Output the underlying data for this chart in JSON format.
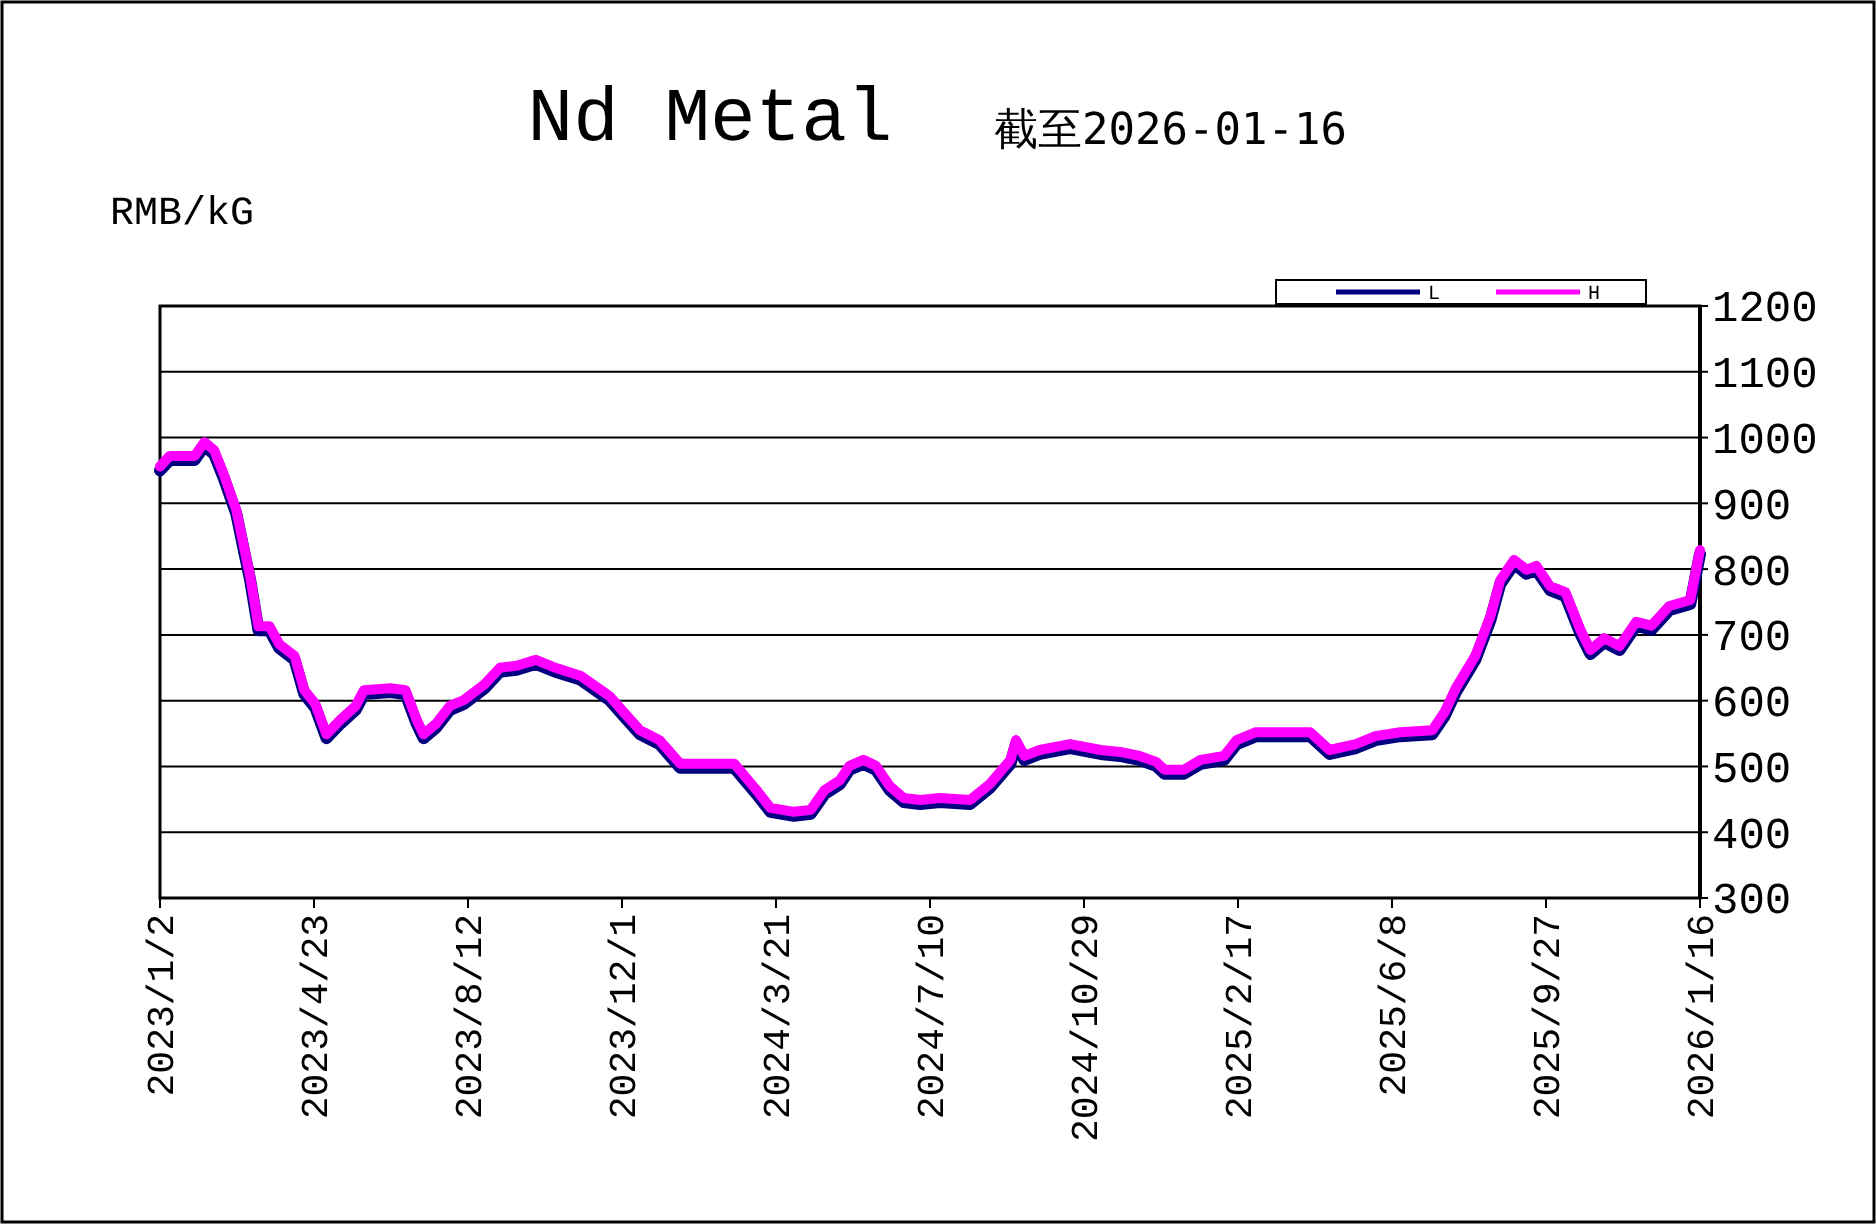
{
  "chart_data": {
    "type": "line",
    "title": "Nd Metal",
    "subtitle": "截至2026-01-16",
    "ylabel": "RMB/kG",
    "x": [
      "2023-01-02",
      "2023-01-09",
      "2023-01-27",
      "2023-02-03",
      "2023-02-10",
      "2023-02-17",
      "2023-02-26",
      "2023-03-04",
      "2023-03-08",
      "2023-03-14",
      "2023-03-22",
      "2023-03-29",
      "2023-04-09",
      "2023-04-16",
      "2023-04-24",
      "2023-05-02",
      "2023-05-12",
      "2023-05-23",
      "2023-05-29",
      "2023-06-17",
      "2023-06-28",
      "2023-07-06",
      "2023-07-11",
      "2023-07-20",
      "2023-07-30",
      "2023-08-09",
      "2023-08-24",
      "2023-09-04",
      "2023-09-16",
      "2023-09-30",
      "2023-10-14",
      "2023-11-01",
      "2023-11-22",
      "2023-12-02",
      "2023-12-14",
      "2023-12-28",
      "2024-01-12",
      "2024-02-20",
      "2024-03-07",
      "2024-03-17",
      "2024-04-03",
      "2024-04-15",
      "2024-04-25",
      "2024-05-06",
      "2024-05-13",
      "2024-05-23",
      "2024-06-01",
      "2024-06-11",
      "2024-06-21",
      "2024-07-03",
      "2024-07-17",
      "2024-08-08",
      "2024-08-22",
      "2024-09-06",
      "2024-09-10",
      "2024-09-16",
      "2024-09-27",
      "2024-10-19",
      "2024-11-10",
      "2024-11-24",
      "2024-12-08",
      "2024-12-20",
      "2024-12-26",
      "2025-01-09",
      "2025-01-21",
      "2025-02-07",
      "2025-02-16",
      "2025-03-02",
      "2025-03-27",
      "2025-04-10",
      "2025-04-24",
      "2025-05-13",
      "2025-05-27",
      "2025-06-14",
      "2025-07-07",
      "2025-07-16",
      "2025-07-24",
      "2025-08-07",
      "2025-08-18",
      "2025-08-25",
      "2025-09-04",
      "2025-09-13",
      "2025-09-20",
      "2025-09-30",
      "2025-10-11",
      "2025-10-22",
      "2025-10-29",
      "2025-11-08",
      "2025-11-19",
      "2025-12-01",
      "2025-12-12",
      "2025-12-25",
      "2026-01-09",
      "2026-01-16"
    ],
    "series": [
      {
        "name": "L",
        "color": "#000080",
        "values": [
          950,
          966,
          966,
          987,
          975,
          938,
          884,
          823,
          783,
          707,
          707,
          680,
          662,
          610,
          589,
          543,
          565,
          586,
          610,
          613,
          610,
          565,
          543,
          559,
          586,
          595,
          619,
          644,
          647,
          656,
          644,
          632,
          601,
          577,
          549,
          534,
          498,
          498,
          458,
          431,
          425,
          428,
          458,
          473,
          495,
          504,
          495,
          464,
          446,
          443,
          446,
          443,
          467,
          504,
          534,
          510,
          519,
          528,
          519,
          516,
          510,
          501,
          489,
          489,
          504,
          510,
          534,
          546,
          546,
          546,
          519,
          528,
          540,
          546,
          549,
          577,
          613,
          662,
          723,
          777,
          808,
          793,
          799,
          768,
          759,
          701,
          671,
          689,
          677,
          714,
          708,
          738,
          747,
          823
        ]
      },
      {
        "name": "H",
        "color": "#ff00ff",
        "values": [
          956,
          972,
          972,
          993,
          981,
          944,
          890,
          829,
          789,
          713,
          713,
          686,
          668,
          616,
          595,
          549,
          571,
          592,
          616,
          619,
          616,
          571,
          549,
          565,
          592,
          601,
          625,
          650,
          653,
          662,
          650,
          638,
          607,
          583,
          555,
          540,
          504,
          504,
          464,
          437,
          431,
          434,
          464,
          479,
          501,
          510,
          501,
          470,
          452,
          449,
          452,
          449,
          473,
          510,
          540,
          516,
          525,
          534,
          525,
          522,
          516,
          507,
          495,
          495,
          510,
          516,
          540,
          552,
          552,
          552,
          525,
          534,
          546,
          552,
          555,
          583,
          619,
          668,
          729,
          783,
          814,
          799,
          805,
          774,
          765,
          707,
          677,
          695,
          683,
          720,
          714,
          744,
          753,
          829
        ]
      }
    ],
    "xlim": [
      "2023-01-02",
      "2026-01-16"
    ],
    "xticks": [
      {
        "value": "2023-01-02",
        "label": "2023/1/2"
      },
      {
        "value": "2023-04-23",
        "label": "2023/4/23"
      },
      {
        "value": "2023-08-12",
        "label": "2023/8/12"
      },
      {
        "value": "2023-12-01",
        "label": "2023/12/1"
      },
      {
        "value": "2024-03-21",
        "label": "2024/3/21"
      },
      {
        "value": "2024-07-10",
        "label": "2024/7/10"
      },
      {
        "value": "2024-10-29",
        "label": "2024/10/29"
      },
      {
        "value": "2025-02-17",
        "label": "2025/2/17"
      },
      {
        "value": "2025-06-08",
        "label": "2025/6/8"
      },
      {
        "value": "2025-09-27",
        "label": "2025/9/27"
      },
      {
        "value": "2026-01-16",
        "label": "2026/1/16"
      }
    ],
    "ylim": [
      300,
      1200
    ],
    "yticks": [
      300,
      400,
      500,
      600,
      700,
      800,
      900,
      1000,
      1100,
      1200
    ],
    "grid": "y",
    "legend": "top right",
    "marker": "none",
    "line_style": "solid"
  }
}
